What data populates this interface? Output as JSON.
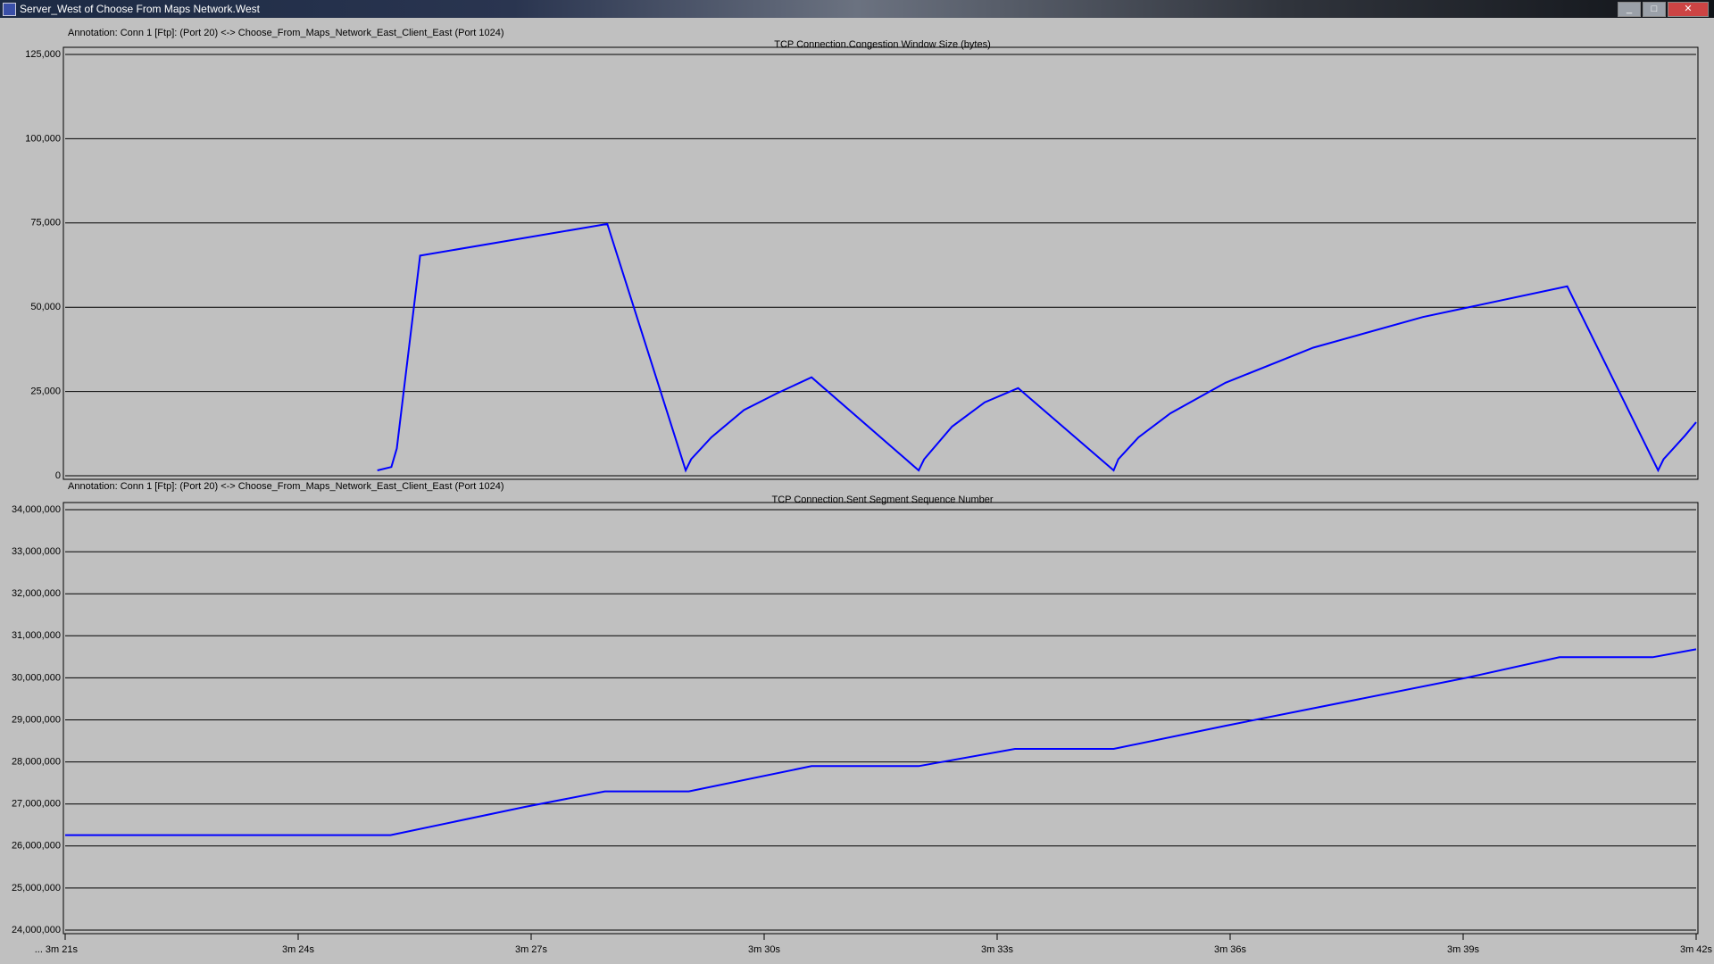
{
  "window": {
    "title": "Server_West of Choose From Maps Network.West"
  },
  "chart_data": [
    {
      "type": "line",
      "annotation": "Annotation: Conn 1 [Ftp]: (Port 20) <-> Choose_From_Maps_Network_East_Client_East (Port 1024)",
      "title": "TCP Connection.Congestion Window Size (bytes)",
      "color": "#0000ff",
      "x": [
        205.02,
        205.2,
        205.27,
        205.57,
        207.98,
        208.99,
        209.06,
        209.32,
        209.74,
        210.16,
        210.61,
        211.99,
        212.06,
        212.42,
        212.84,
        213.27,
        214.5,
        214.56,
        214.82,
        215.23,
        215.94,
        217.07,
        218.48,
        220.34,
        221.51,
        221.58,
        221.86,
        222
      ],
      "values": [
        1600,
        2600,
        8100,
        65300,
        74700,
        1600,
        4900,
        11400,
        19500,
        24400,
        29200,
        1600,
        4900,
        14600,
        21800,
        26000,
        1600,
        4900,
        11400,
        18500,
        27600,
        38000,
        47100,
        56200,
        1600,
        4900,
        12000,
        15900
      ],
      "xlim": [
        201,
        222
      ],
      "ylim": [
        0,
        125000
      ],
      "yticks": [
        0,
        {
          "value": 25000,
          "label": "25,000"
        },
        {
          "value": 50000,
          "label": "50,000"
        },
        {
          "value": 75000,
          "label": "75,000"
        },
        {
          "value": 100000,
          "label": "100,000"
        },
        {
          "value": 125000,
          "label": "125,000"
        }
      ],
      "grid": true
    },
    {
      "type": "line",
      "annotation": "Annotation: Conn 1 [Ftp]: (Port 20) <-> Choose_From_Maps_Network_East_Client_East (Port 1024)",
      "title": "TCP Connection.Sent Segment Sequence Number",
      "color": "#0000ff",
      "x": [
        201,
        205.19,
        206.92,
        207.95,
        209.03,
        210.61,
        211.99,
        213.23,
        214.5,
        215.94,
        219.04,
        220.24,
        221.44,
        222
      ],
      "values": [
        26260000,
        26260000,
        26930000,
        27300000,
        27300000,
        27900000,
        27900000,
        28310000,
        28310000,
        28860000,
        30000000,
        30490000,
        30490000,
        30680000
      ],
      "xlim": [
        201,
        222
      ],
      "ylim": [
        24000000,
        34000000
      ],
      "yticks": [
        {
          "value": 24000000,
          "label": "24,000,000"
        },
        {
          "value": 25000000,
          "label": "25,000,000"
        },
        {
          "value": 26000000,
          "label": "26,000,000"
        },
        {
          "value": 27000000,
          "label": "27,000,000"
        },
        {
          "value": 28000000,
          "label": "28,000,000"
        },
        {
          "value": 29000000,
          "label": "29,000,000"
        },
        {
          "value": 30000000,
          "label": "30,000,000"
        },
        {
          "value": 31000000,
          "label": "31,000,000"
        },
        {
          "value": 32000000,
          "label": "32,000,000"
        },
        {
          "value": 33000000,
          "label": "33,000,000"
        },
        {
          "value": 34000000,
          "label": "34,000,000"
        }
      ],
      "xticks": [
        {
          "value": 201,
          "label": "... 3m 21s"
        },
        {
          "value": 204,
          "label": "3m 24s"
        },
        {
          "value": 207,
          "label": "3m 27s"
        },
        {
          "value": 210,
          "label": "3m 30s"
        },
        {
          "value": 213,
          "label": "3m 33s"
        },
        {
          "value": 216,
          "label": "3m 36s"
        },
        {
          "value": 219,
          "label": "3m 39s"
        },
        {
          "value": 222,
          "label": "3m 42s"
        }
      ],
      "grid": true
    }
  ]
}
